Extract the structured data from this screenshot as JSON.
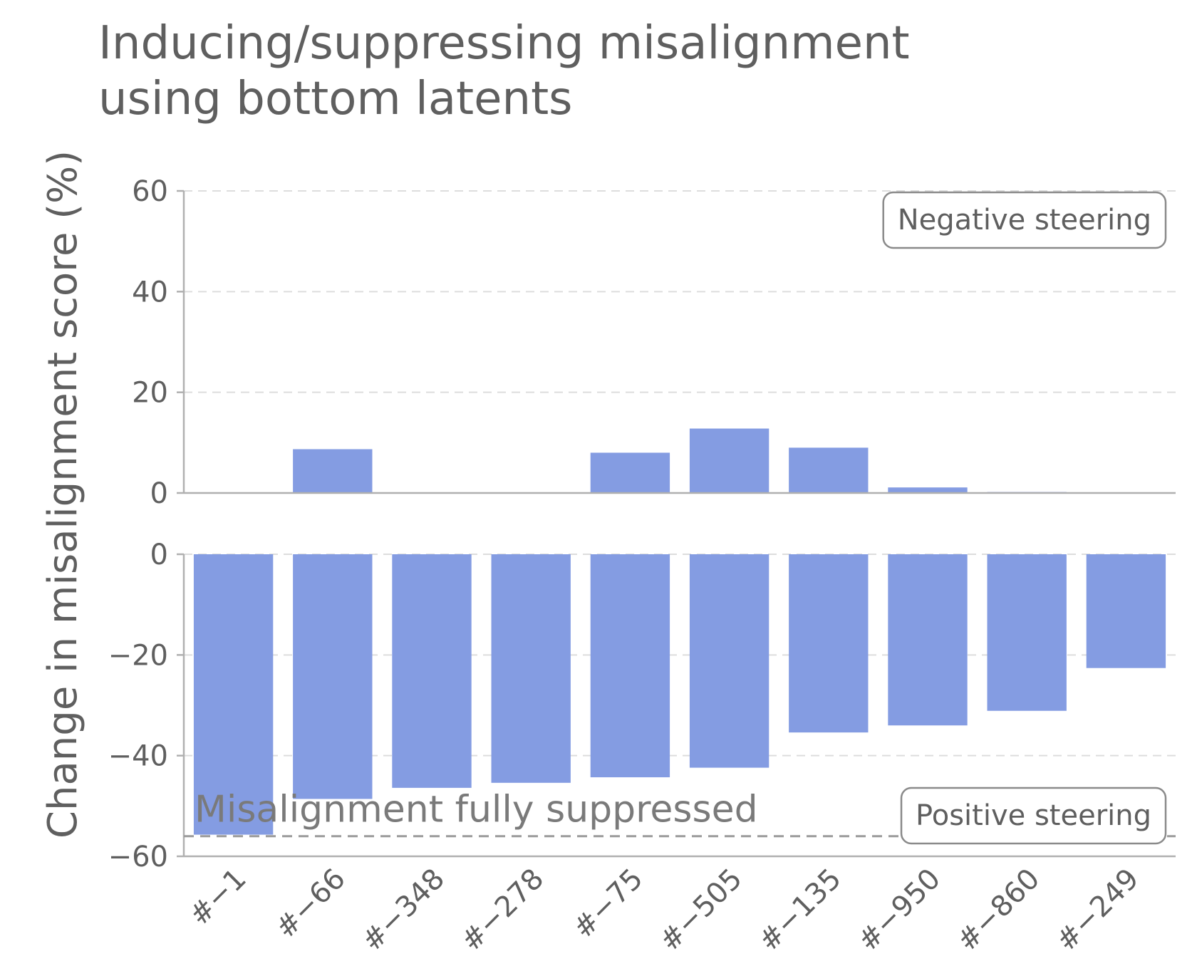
{
  "chart_data": {
    "type": "bar",
    "title_lines": [
      "Inducing/suppressing misalignment",
      "using bottom latents"
    ],
    "ylabel": "Change in misalignment score (%)",
    "xlabel": "",
    "categories": [
      "#−1",
      "#−66",
      "#−348",
      "#−278",
      "#−75",
      "#−505",
      "#−135",
      "#−950",
      "#−860",
      "#−249"
    ],
    "bar_color": "#849ce2",
    "panels": [
      {
        "name": "Negative steering",
        "annotation": "Negative steering",
        "ylim": [
          0,
          60
        ],
        "yticks": [
          0,
          20,
          40,
          60
        ],
        "ytick_labels": [
          "0",
          "20",
          "40",
          "60"
        ],
        "values": [
          0,
          8.7,
          0,
          0,
          8.0,
          12.8,
          9.0,
          1.1,
          0.2,
          0
        ],
        "grid": true
      },
      {
        "name": "Positive steering",
        "annotation": "Positive steering",
        "ylim": [
          -60,
          0
        ],
        "yticks": [
          -60,
          -40,
          -20,
          0
        ],
        "ytick_labels": [
          "−60",
          "−40",
          "−20",
          "0"
        ],
        "values": [
          -55.7,
          -48.6,
          -46.4,
          -45.4,
          -44.3,
          -42.4,
          -35.4,
          -34.0,
          -31.1,
          -22.6
        ],
        "grid": true,
        "reference_line": {
          "value": -56,
          "label": "Misalignment fully suppressed",
          "color": "#9a9a9a"
        }
      }
    ]
  }
}
